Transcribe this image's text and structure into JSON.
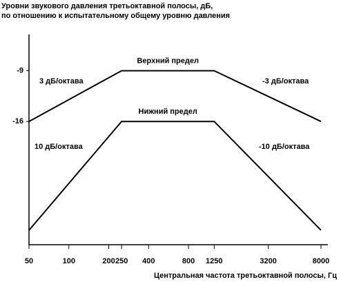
{
  "chart_data": {
    "type": "line",
    "ylabel": [
      "Уровни звукового давления третьоктавной полосы, дБ,",
      "по отношению к испытательному общему уровню давления"
    ],
    "xlabel": "Центральная частота третьоктавной полосы, Гц",
    "x": [
      50,
      250,
      1250,
      8000
    ],
    "series": [
      {
        "name": "Верхний предел",
        "color": "#000000",
        "values": [
          -16,
          -9,
          -9,
          -16
        ]
      },
      {
        "name": "Нижний предел",
        "color": "#000000",
        "values": [
          -31,
          -16,
          -16,
          -31
        ]
      }
    ],
    "annotations": [
      "3 дБ/октава",
      "-3 дБ/октава",
      "10 дБ/октава",
      "-10 дБ/октава"
    ],
    "xscale": "log",
    "xlim": [
      50,
      8000
    ],
    "xticks": [
      50,
      100,
      200,
      250,
      400,
      800,
      1250,
      3200,
      8000
    ],
    "ylim": [
      -33,
      -4
    ],
    "yticks": [
      -9,
      -16
    ]
  }
}
